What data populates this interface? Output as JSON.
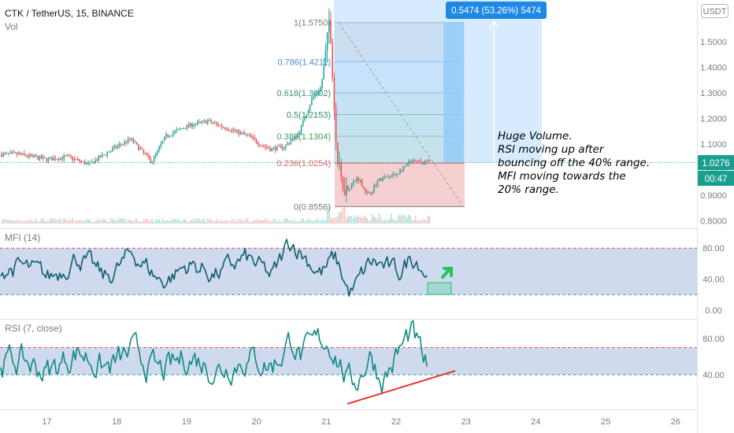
{
  "header": {
    "symbol": "CTK / TetherUS, 15, BINANCE",
    "volume_label": "Vol",
    "currency": "USDT"
  },
  "measure_label": "0.5474 (53.26%) 5474",
  "price_badge": {
    "price": "1.0276",
    "countdown": "00:47"
  },
  "annotation": [
    "Huge Volume.",
    "RSI moving up after",
    "bouncing off the 40% range.",
    "MFI moving towards the",
    "20% range."
  ],
  "colors": {
    "price_line": "#c2185b",
    "candle_up": "#26a69a",
    "candle_down": "#ef5350",
    "indicator_line": "#0f5e6e",
    "rsi_line": "#0f8a82",
    "band_fill": "#c8d4ec",
    "band_border": "#d9534f",
    "trendline": "#e53935",
    "arrow": "#22c55e",
    "measure": "#1e88e5"
  },
  "chart_data": [
    {
      "type": "candlestick",
      "title": "CTK / TetherUS, 15, BINANCE",
      "x_tick_labels": [
        "17",
        "18",
        "19",
        "20",
        "21",
        "22",
        "23",
        "24",
        "25",
        "26"
      ],
      "y_tick_labels": [
        "0.8000",
        "0.9000",
        "1.0000",
        "1.1000",
        "1.2000",
        "1.3000",
        "1.4000",
        "1.5000"
      ],
      "ylim": [
        0.8,
        1.58
      ],
      "last_price": 1.0276,
      "path_keypoints": {
        "x": [
          "16.6",
          "17.0",
          "17.3",
          "17.6",
          "18.0",
          "18.2",
          "18.5",
          "18.7",
          "19.0",
          "19.3",
          "19.6",
          "19.9",
          "20.05",
          "20.2",
          "20.4",
          "20.6",
          "20.8",
          "20.92",
          "20.97",
          "21.02",
          "21.05",
          "21.15",
          "21.22",
          "21.3",
          "21.45",
          "21.6",
          "21.75",
          "22.0",
          "22.2",
          "22.4",
          "22.5"
        ],
        "y": [
          1.06,
          1.04,
          1.05,
          1.02,
          1.09,
          1.12,
          1.03,
          1.13,
          1.17,
          1.19,
          1.16,
          1.13,
          1.1,
          1.08,
          1.09,
          1.14,
          1.28,
          1.32,
          1.4,
          1.52,
          1.58,
          1.05,
          0.95,
          0.92,
          0.97,
          0.9,
          0.96,
          0.98,
          1.03,
          1.03,
          1.03
        ]
      },
      "fibonacci": [
        {
          "ratio": "1",
          "price": 1.575,
          "label": "1(1.5750)"
        },
        {
          "ratio": "0.786",
          "price": 1.4211,
          "label": "0.786(1.4211)"
        },
        {
          "ratio": "0.618",
          "price": 1.3002,
          "label": "0.618(1.3002)"
        },
        {
          "ratio": "0.5",
          "price": 1.2153,
          "label": "0.5(1.2153)"
        },
        {
          "ratio": "0.382",
          "price": 1.1304,
          "label": "0.382(1.1304)"
        },
        {
          "ratio": "0.236",
          "price": 1.0254,
          "label": "0.236(1.0254)"
        },
        {
          "ratio": "0",
          "price": 0.8556,
          "label": "0(0.8556)"
        }
      ],
      "fib_fill_colors": [
        "#e0e0e0",
        "#dbe9f9",
        "#d6eceb",
        "#d1ebe0",
        "#d6ecd8",
        "#f6d0d0"
      ],
      "fib_line_colors": [
        "#787b86",
        "#4c8bd6",
        "#3a8a7c",
        "#2f8a6a",
        "#3f9c55",
        "#e06666",
        "#787b86"
      ],
      "measure": {
        "from_price": 1.0276,
        "to_price": 1.575,
        "change": 0.5474,
        "change_pct": 53.26
      }
    },
    {
      "type": "line",
      "title": "MFI (14)",
      "y_tick_labels": [
        "0.00",
        "40.00",
        "80.00"
      ],
      "ylim": [
        0,
        100
      ],
      "bands": [
        20,
        80
      ],
      "keypoints": {
        "x": [
          "16.6",
          "17.0",
          "17.4",
          "17.8",
          "18.2",
          "18.6",
          "19.0",
          "19.4",
          "19.8",
          "20.2",
          "20.45",
          "20.6",
          "20.9",
          "21.1",
          "21.3",
          "21.6",
          "22.0",
          "22.2",
          "22.3",
          "22.45"
        ],
        "y": [
          55,
          40,
          72,
          38,
          75,
          35,
          60,
          45,
          68,
          40,
          95,
          75,
          45,
          70,
          15,
          65,
          45,
          74,
          66,
          35
        ]
      }
    },
    {
      "type": "line",
      "title": "RSI (7, close)",
      "y_tick_labels": [
        "40.00",
        "80.00"
      ],
      "ylim": [
        15,
        100
      ],
      "bands": [
        40,
        70
      ],
      "keypoints": {
        "x": [
          "16.6",
          "17.0",
          "17.4",
          "17.8",
          "18.2",
          "18.6",
          "19.0",
          "19.4",
          "19.8",
          "20.2",
          "20.5",
          "20.6",
          "20.9",
          "21.05",
          "21.3",
          "21.45",
          "21.6",
          "21.75",
          "22.0",
          "22.2",
          "22.3",
          "22.45"
        ],
        "y": [
          55,
          42,
          68,
          45,
          65,
          40,
          62,
          45,
          60,
          50,
          85,
          55,
          80,
          75,
          25,
          40,
          70,
          30,
          65,
          90,
          60,
          37
        ]
      }
    }
  ]
}
